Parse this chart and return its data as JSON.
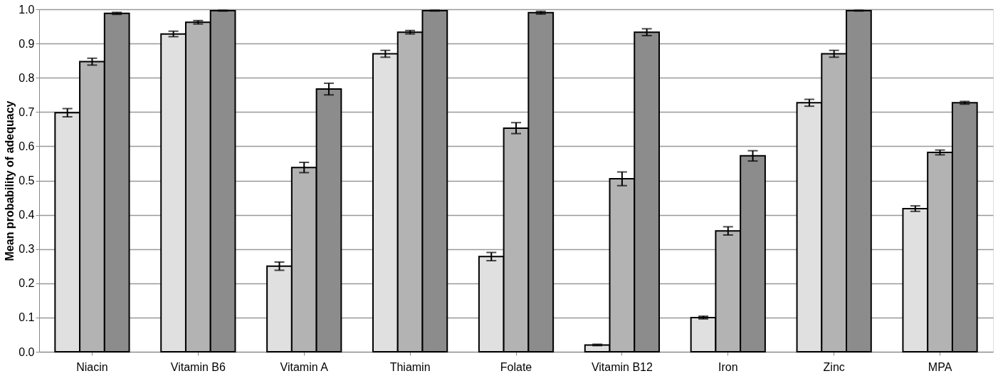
{
  "chart_data": {
    "type": "bar",
    "ylabel": "Mean probability of adequacy",
    "categories": [
      "Niacin",
      "Vitamin B6",
      "Vitamin A",
      "Thiamin",
      "Folate",
      "Vitamin B12",
      "Iron",
      "Zinc",
      "MPA"
    ],
    "series": [
      {
        "color": "#e0e0e0",
        "values": [
          0.698,
          0.928,
          0.25,
          0.87,
          0.278,
          0.02,
          0.1,
          0.727,
          0.418
        ],
        "errors": [
          0.012,
          0.008,
          0.012,
          0.01,
          0.012,
          0.002,
          0.004,
          0.01,
          0.008
        ]
      },
      {
        "color": "#b3b3b3",
        "values": [
          0.847,
          0.962,
          0.538,
          0.933,
          0.653,
          0.505,
          0.353,
          0.87,
          0.582
        ],
        "errors": [
          0.01,
          0.005,
          0.015,
          0.005,
          0.016,
          0.02,
          0.012,
          0.01,
          0.007
        ]
      },
      {
        "color": "#8c8c8c",
        "values": [
          0.988,
          0.996,
          0.767,
          0.996,
          0.99,
          0.933,
          0.572,
          0.996,
          0.727
        ],
        "errors": [
          0.003,
          0.001,
          0.017,
          0.001,
          0.004,
          0.01,
          0.015,
          0.001,
          0.004
        ]
      }
    ],
    "ylim": [
      0,
      1
    ],
    "yticks": [
      {
        "value": 0,
        "label": "0.0"
      },
      0.1,
      0.2,
      0.3,
      0.4,
      0.5,
      0.6,
      0.7,
      0.8,
      0.9,
      {
        "value": 1,
        "label": "1.0"
      }
    ],
    "grid": "y",
    "legend": false
  }
}
